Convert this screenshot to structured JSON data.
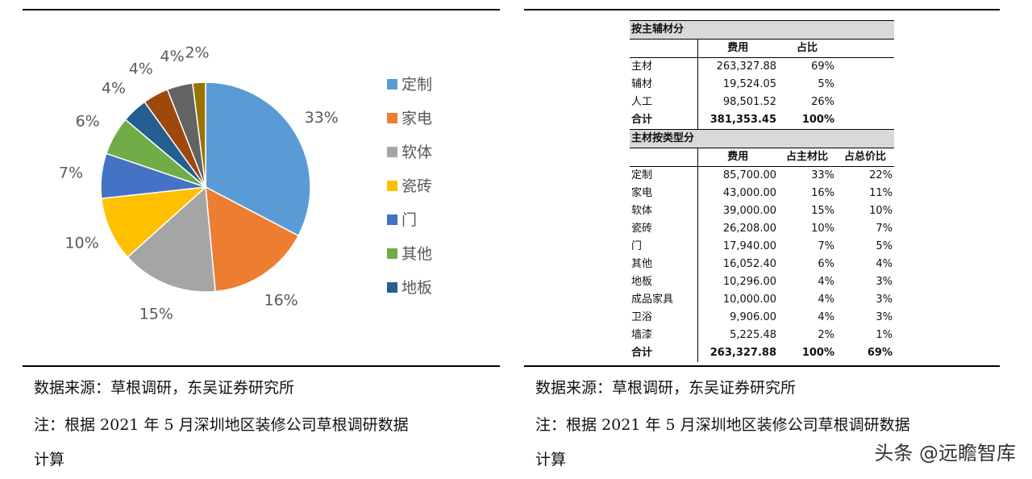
{
  "chart_data": {
    "type": "pie",
    "slices": [
      {
        "name": "定制",
        "value": 33,
        "label": "33%",
        "color": "#5b9bd5"
      },
      {
        "name": "家电",
        "value": 16,
        "label": "16%",
        "color": "#ed7d31"
      },
      {
        "name": "软体",
        "value": 15,
        "label": "15%",
        "color": "#a5a5a5"
      },
      {
        "name": "瓷砖",
        "value": 10,
        "label": "10%",
        "color": "#ffc000"
      },
      {
        "name": "门",
        "value": 7,
        "label": "7%",
        "color": "#4472c4"
      },
      {
        "name": "其他",
        "value": 6,
        "label": "6%",
        "color": "#70ad47"
      },
      {
        "name": "地板",
        "value": 4,
        "label": "4%",
        "color": "#255e91"
      },
      {
        "name": "",
        "value": 4,
        "label": "4%",
        "color": "#9e480e"
      },
      {
        "name": "",
        "value": 4,
        "label": "4%",
        "color": "#636363"
      },
      {
        "name": "",
        "value": 2,
        "label": "2%",
        "color": "#997300"
      }
    ],
    "legend": [
      "定制",
      "家电",
      "软体",
      "瓷砖",
      "门",
      "其他",
      "地板"
    ],
    "legend_position": "right"
  },
  "left_notes": {
    "source": "数据来源：草根调研，东吴证券研究所",
    "note_line1": "注：根据 2021 年 5 月深圳地区装修公司草根调研数据",
    "note_line2": "计算"
  },
  "right_notes": {
    "source": "数据来源：草根调研，东吴证券研究所",
    "note_line1": "注：根据 2021 年 5 月深圳地区装修公司草根调研数据",
    "note_line2": "计算"
  },
  "table": {
    "section1": {
      "title": "按主辅材分",
      "headers": [
        "",
        "费用",
        "占比",
        ""
      ],
      "rows": [
        [
          "主材",
          "263,327.88",
          "69%",
          ""
        ],
        [
          "辅材",
          "19,524.05",
          "5%",
          ""
        ],
        [
          "人工",
          "98,501.52",
          "26%",
          ""
        ]
      ],
      "total": [
        "合计",
        "381,353.45",
        "100%",
        ""
      ]
    },
    "section2": {
      "title": "主材按类型分",
      "headers": [
        "",
        "费用",
        "占主材比",
        "占总价比"
      ],
      "rows": [
        [
          "定制",
          "85,700.00",
          "33%",
          "22%"
        ],
        [
          "家电",
          "43,000.00",
          "16%",
          "11%"
        ],
        [
          "软体",
          "39,000.00",
          "15%",
          "10%"
        ],
        [
          "瓷砖",
          "26,208.00",
          "10%",
          "7%"
        ],
        [
          "门",
          "17,940.00",
          "7%",
          "5%"
        ],
        [
          "其他",
          "16,052.40",
          "6%",
          "4%"
        ],
        [
          "地板",
          "10,296.00",
          "4%",
          "3%"
        ],
        [
          "成品家具",
          "10,000.00",
          "4%",
          "3%"
        ],
        [
          "卫浴",
          "9,906.00",
          "4%",
          "3%"
        ],
        [
          "墙漆",
          "5,225.48",
          "2%",
          "1%"
        ]
      ],
      "total": [
        "合计",
        "263,327.88",
        "100%",
        "69%"
      ]
    }
  },
  "watermark": "头条 @远瞻智库"
}
